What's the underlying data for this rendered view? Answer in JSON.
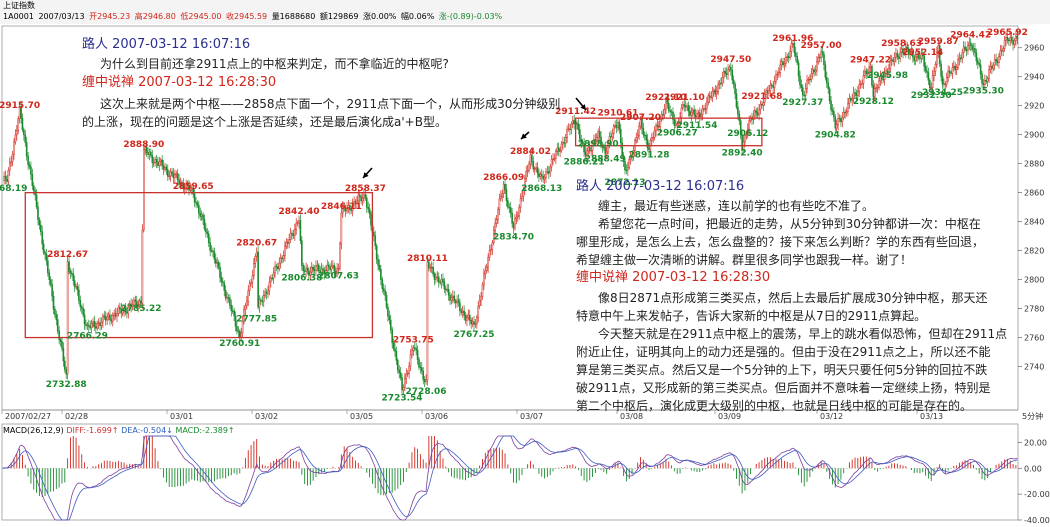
{
  "header": {
    "index_name": "上证指数",
    "code": "1A0001",
    "date": "2007/03/13",
    "open": "开2945.23",
    "high": "高2946.80",
    "low": "低2945.00",
    "close": "收2945.59",
    "volume": "量1688680",
    "amount": "额129869",
    "chg_pct": "涨0.00%",
    "turnover": "幅0.06%",
    "chg": "涨-(0.89)-0.03%"
  },
  "colors": {
    "up": "#d0261b",
    "down": "#1a8a2e",
    "box": "#c8322c",
    "dif": "#7a3fa0",
    "dea": "#3f5cc0",
    "macd_label": "#000000"
  },
  "annotations": {
    "q1_user": "路人 2007-03-12 16:07:16",
    "q1_text": "为什么到目前还拿2911点上的中枢来判定，而不拿临近的中枢呢?",
    "a1_user": "缠中说禅 2007-03-12 16:28:30",
    "a1_line1": "这次上来就是两个中枢——2858点下面一个，2911点下面一个，从而形成30分钟级别",
    "a1_line2": "的上涨，现在的问题是这个上涨是否延续，还是最后演化成a'+B型。",
    "q2_user": "路人 2007-03-12 16:07:16",
    "q2_lines": [
      "缠主，最近有些迷惑，连以前学的也有些吃不准了。",
      "希望您花一点时间，把最近的走势，从5分钟到30分钟都讲一次：中枢在",
      "哪里形成，是怎么上去，怎么盘整的？接下来怎么判断？学的东西有些回退，",
      "希望缠主做一次清晰的讲解。群里很多同学也跟我一样。谢了！"
    ],
    "a2_user": "缠中说禅 2007-03-12 16:28:30",
    "a2_lines": [
      "像8日2871点形成第三类买点，然后上去最后扩展成30分钟中枢，那天还",
      "特意中午上来发帖子，告诉大家新的中枢是从7日的2911点算起。",
      "今天整天就是在2911点中枢上的震荡，早上的跳水看似恐怖，但却在2911点",
      "附近止住，证明其向上的动力还是强的。但由于没在2911点之上，所以还不能",
      "算是第三类买点。然后又是一个5分钟的上下，明天只要任何5分钟的回拉不跌",
      "破2911点，又形成新的第三类买点。但后面并不意味着一定继续上扬，特别是",
      "第二个中枢后，演化成更大级别的中枢，也就是日线中枢的可能是存在的。"
    ]
  },
  "chart_data": [
    {
      "type": "candlestick",
      "title": "",
      "ylim": [
        2710,
        2975
      ],
      "yticks": [
        2740,
        2760,
        2780,
        2800,
        2820,
        2840,
        2860,
        2880,
        2900,
        2920,
        2940,
        2960
      ],
      "xlabels": [
        "2007/02/27",
        "02/28",
        "03/01",
        "03/02",
        "03/05",
        "03/06",
        "03/07",
        "03/08",
        "03/09",
        "03/12",
        "03/13"
      ],
      "period_label": "5分钟",
      "price_labels": [
        {
          "v": "2915.70",
          "x": 12,
          "y": 2915.7,
          "up": true
        },
        {
          "v": "2868.19",
          "x": 3,
          "y": 2868.2,
          "up": false
        },
        {
          "v": "2812.67",
          "x": 46,
          "y": 2812.7,
          "up": true
        },
        {
          "v": "2732.88",
          "x": 45,
          "y": 2732.9,
          "up": false
        },
        {
          "v": "2766.29",
          "x": 60,
          "y": 2766.3,
          "up": false
        },
        {
          "v": "2888.90",
          "x": 100,
          "y": 2888.9,
          "up": true
        },
        {
          "v": "2785.22",
          "x": 98,
          "y": 2785.2,
          "up": false
        },
        {
          "v": "2859.65",
          "x": 135,
          "y": 2859.7,
          "up": true
        },
        {
          "v": "2820.67",
          "x": 180,
          "y": 2820.7,
          "up": true
        },
        {
          "v": "2777.85",
          "x": 180,
          "y": 2777.9,
          "up": false
        },
        {
          "v": "2760.91",
          "x": 168,
          "y": 2760.9,
          "up": false
        },
        {
          "v": "2842.40",
          "x": 210,
          "y": 2842.4,
          "up": true
        },
        {
          "v": "2846.11",
          "x": 240,
          "y": 2846.1,
          "up": true
        },
        {
          "v": "2806.38",
          "x": 212,
          "y": 2806.4,
          "up": false
        },
        {
          "v": "2807.63",
          "x": 238,
          "y": 2807.6,
          "up": false
        },
        {
          "v": "2858.37",
          "x": 257,
          "y": 2858.4,
          "up": true
        },
        {
          "v": "2810.11",
          "x": 301,
          "y": 2810.1,
          "up": true
        },
        {
          "v": "2753.75",
          "x": 291,
          "y": 2753.8,
          "up": true
        },
        {
          "v": "2723.54",
          "x": 283,
          "y": 2723.5,
          "up": false
        },
        {
          "v": "2728.06",
          "x": 300,
          "y": 2728.1,
          "up": false
        },
        {
          "v": "2767.25",
          "x": 334,
          "y": 2767.3,
          "up": false
        },
        {
          "v": "2866.09",
          "x": 355,
          "y": 2866.1,
          "up": true
        },
        {
          "v": "2834.70",
          "x": 362,
          "y": 2834.7,
          "up": false
        },
        {
          "v": "2884.02",
          "x": 374,
          "y": 2884.0,
          "up": true
        },
        {
          "v": "2868.13",
          "x": 382,
          "y": 2868.1,
          "up": false
        },
        {
          "v": "2911.42",
          "x": 406,
          "y": 2911.4,
          "up": true
        },
        {
          "v": "2886.21",
          "x": 412,
          "y": 2886.2,
          "up": false
        },
        {
          "v": "2898.90",
          "x": 422,
          "y": 2898.9,
          "up": false
        },
        {
          "v": "2888.49",
          "x": 427,
          "y": 2888.5,
          "up": false
        },
        {
          "v": "2910.61",
          "x": 436,
          "y": 2910.6,
          "up": true
        },
        {
          "v": "2872.13",
          "x": 441,
          "y": 2872.1,
          "up": false
        },
        {
          "v": "2907.20",
          "x": 452,
          "y": 2907.2,
          "up": true
        },
        {
          "v": "2891.28",
          "x": 458,
          "y": 2891.3,
          "up": false
        },
        {
          "v": "2921.10",
          "x": 470,
          "y": 2921.1,
          "up": true
        },
        {
          "v": "2921.10",
          "x": 483,
          "y": 2921.1,
          "up": true
        },
        {
          "v": "2906.27",
          "x": 478,
          "y": 2906.3,
          "up": false
        },
        {
          "v": "2911.54",
          "x": 492,
          "y": 2911.5,
          "up": false
        },
        {
          "v": "2947.50",
          "x": 516,
          "y": 2947.5,
          "up": true
        },
        {
          "v": "2921.68",
          "x": 538,
          "y": 2921.7,
          "up": true
        },
        {
          "v": "2906.12",
          "x": 528,
          "y": 2906.1,
          "up": false
        },
        {
          "v": "2892.40",
          "x": 524,
          "y": 2892.4,
          "up": false
        },
        {
          "v": "2961.96",
          "x": 560,
          "y": 2962.0,
          "up": true
        },
        {
          "v": "2957.00",
          "x": 580,
          "y": 2957.0,
          "up": true
        },
        {
          "v": "2927.37",
          "x": 567,
          "y": 2927.4,
          "up": false
        },
        {
          "v": "2904.82",
          "x": 590,
          "y": 2904.8,
          "up": false
        },
        {
          "v": "2947.22",
          "x": 615,
          "y": 2947.2,
          "up": true
        },
        {
          "v": "2928.12",
          "x": 617,
          "y": 2928.1,
          "up": false
        },
        {
          "v": "2958.63",
          "x": 637,
          "y": 2958.6,
          "up": true
        },
        {
          "v": "2945.98",
          "x": 627,
          "y": 2946.0,
          "up": false
        },
        {
          "v": "2952.14",
          "x": 652,
          "y": 2952.1,
          "up": true
        },
        {
          "v": "2959.87",
          "x": 663,
          "y": 2959.9,
          "up": true
        },
        {
          "v": "2934.25",
          "x": 666,
          "y": 2934.3,
          "up": false
        },
        {
          "v": "2932.30",
          "x": 658,
          "y": 2932.3,
          "up": false
        },
        {
          "v": "2964.42",
          "x": 686,
          "y": 2964.4,
          "up": true
        },
        {
          "v": "2935.30",
          "x": 695,
          "y": 2935.3,
          "up": false
        },
        {
          "v": "2965.92",
          "x": 712,
          "y": 2965.9,
          "up": true
        }
      ],
      "boxes": [
        {
          "x0": 16,
          "x1": 262,
          "y0": 2760.0,
          "y1": 2860.0
        },
        {
          "x0": 406,
          "x1": 538,
          "y0": 2892.4,
          "y1": 2911.4
        }
      ]
    },
    {
      "type": "macd",
      "params": "MACD(26,12,9)",
      "dif": "DIFF:-1.699↑",
      "dea": "DEA:-0.504↓",
      "macd": "MACD:-2.389↑",
      "ylim": [
        -40,
        25
      ],
      "yticks": [
        20.0,
        0.0,
        -20.0,
        -40.0
      ]
    }
  ]
}
